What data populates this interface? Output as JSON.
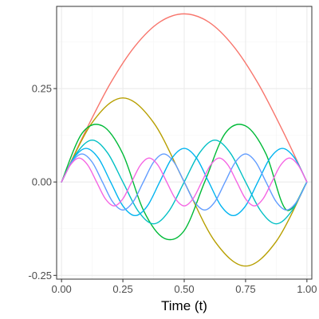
{
  "chart_data": {
    "type": "line",
    "title": "",
    "xlabel": "Time (t)",
    "ylabel": "",
    "xlim": [
      -0.02,
      1.02
    ],
    "ylim": [
      -0.26,
      0.47
    ],
    "x_ticks": [
      0,
      0.25,
      0.5,
      0.75,
      1
    ],
    "x_tick_labels": [
      "0.00",
      "0.25",
      "0.50",
      "0.75",
      "1.00"
    ],
    "y_ticks": [
      -0.25,
      0,
      0.25
    ],
    "y_tick_labels": [
      "-0.25",
      "0.00",
      "0.25"
    ],
    "grid": true,
    "legend": "none",
    "background": "#ffffff",
    "panel_border_color": "#333333",
    "grid_major_color": "#ebebeb",
    "grid_minor_color": "#f5f5f5",
    "series": [
      {
        "color": "#F8766D",
        "x": [
          0,
          0.1,
          0.2,
          0.3,
          0.4,
          0.5,
          0.6,
          0.7,
          0.8,
          0.9,
          1.0
        ],
        "y": [
          0,
          0.139,
          0.265,
          0.364,
          0.428,
          0.45,
          0.428,
          0.364,
          0.265,
          0.139,
          0
        ]
      },
      {
        "color": "#B79F00",
        "x": [
          0,
          0.125,
          0.25,
          0.375,
          0.5,
          0.625,
          0.75,
          0.875,
          1.0
        ],
        "y": [
          0,
          0.159,
          0.225,
          0.159,
          0,
          -0.159,
          -0.225,
          -0.159,
          0
        ]
      },
      {
        "color": "#00BA38",
        "x": [
          0,
          0.0833,
          0.1667,
          0.25,
          0.3333,
          0.4167,
          0.5,
          0.5833,
          0.6667,
          0.75,
          0.8333,
          0.9167,
          1.0
        ],
        "y": [
          0,
          0.13,
          0.15,
          0.075,
          -0.075,
          -0.15,
          -0.13,
          0,
          0.13,
          0.15,
          0.075,
          -0.075,
          0
        ]
      },
      {
        "color": "#00BFC4",
        "x": [
          0,
          0.0625,
          0.125,
          0.1875,
          0.25,
          0.3125,
          0.375,
          0.4375,
          0.5,
          0.5625,
          0.625,
          0.6875,
          0.75,
          0.8125,
          0.875,
          0.9375,
          1.0
        ],
        "y": [
          0,
          0.078,
          0.112,
          0.078,
          0,
          -0.078,
          -0.112,
          -0.078,
          0,
          0.078,
          0.112,
          0.078,
          0,
          -0.078,
          -0.112,
          -0.078,
          0
        ]
      },
      {
        "color": "#00B4F0",
        "x": [
          0,
          0.05,
          0.1,
          0.15,
          0.2,
          0.25,
          0.3,
          0.35,
          0.4,
          0.45,
          0.5,
          0.55,
          0.6,
          0.65,
          0.7,
          0.75,
          0.8,
          0.85,
          0.9,
          0.95,
          1.0
        ],
        "y": [
          0,
          0.064,
          0.09,
          0.064,
          0,
          -0.064,
          -0.09,
          -0.064,
          0,
          0.064,
          0.09,
          0.064,
          0,
          -0.064,
          -0.09,
          -0.064,
          0,
          0.064,
          0.09,
          0.064,
          0
        ]
      },
      {
        "color": "#619CFF",
        "x": [
          0,
          0.0417,
          0.0833,
          0.125,
          0.1667,
          0.2083,
          0.25,
          0.2917,
          0.3333,
          0.375,
          0.4167,
          0.4583,
          0.5,
          0.5417,
          0.5833,
          0.625,
          0.6667,
          0.7083,
          0.75,
          0.7917,
          0.8333,
          0.875,
          0.9167,
          0.9583,
          1.0
        ],
        "y": [
          0,
          0.053,
          0.075,
          0.053,
          0,
          -0.053,
          -0.075,
          -0.053,
          0,
          0.053,
          0.075,
          0.053,
          0,
          -0.053,
          -0.075,
          -0.053,
          0,
          0.053,
          0.075,
          0.053,
          0,
          -0.053,
          -0.075,
          -0.053,
          0
        ]
      },
      {
        "color": "#F564E3",
        "x": [
          0,
          0.0357,
          0.0714,
          0.1071,
          0.1429,
          0.1786,
          0.2143,
          0.25,
          0.2857,
          0.3214,
          0.3571,
          0.3929,
          0.4286,
          0.4643,
          0.5,
          0.5357,
          0.5714,
          0.6071,
          0.6429,
          0.6786,
          0.7143,
          0.75,
          0.7857,
          0.8214,
          0.8571,
          0.8929,
          0.9286,
          0.9643,
          1.0
        ],
        "y": [
          0,
          0.045,
          0.064,
          0.045,
          0,
          -0.045,
          -0.064,
          -0.045,
          0,
          0.045,
          0.064,
          0.045,
          0,
          -0.045,
          -0.064,
          -0.045,
          0,
          0.045,
          0.064,
          0.045,
          0,
          -0.045,
          -0.064,
          -0.045,
          0,
          0.045,
          0.064,
          0.045,
          0
        ]
      }
    ]
  }
}
